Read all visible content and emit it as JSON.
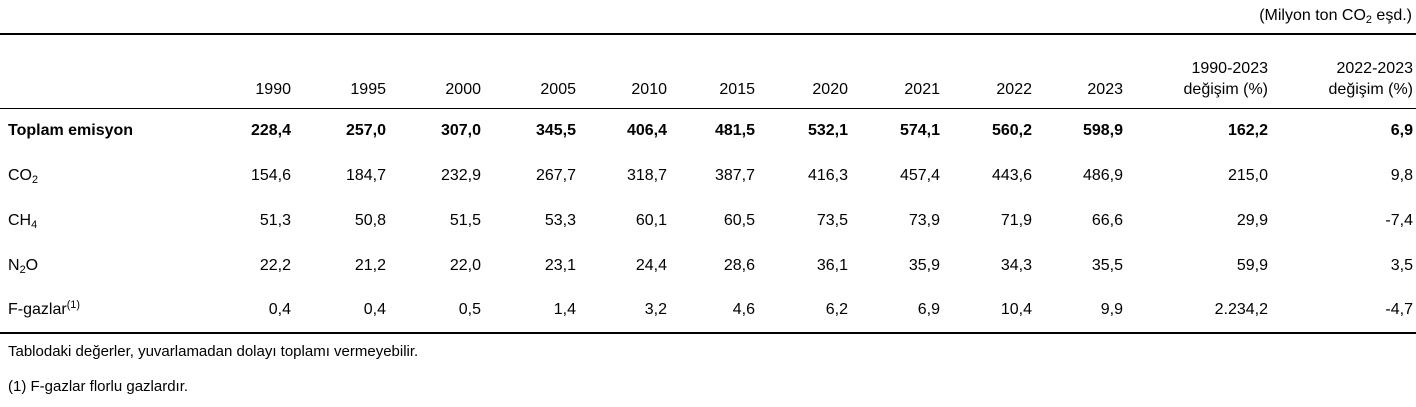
{
  "unit_label_parts": [
    {
      "text": "(Milyon ton CO"
    },
    {
      "text": "2",
      "style": "sub"
    },
    {
      "text": " eşd.)"
    }
  ],
  "table": {
    "columns": [
      {
        "lines": [
          ""
        ]
      },
      {
        "lines": [
          "1990"
        ]
      },
      {
        "lines": [
          "1995"
        ]
      },
      {
        "lines": [
          "2000"
        ]
      },
      {
        "lines": [
          "2005"
        ]
      },
      {
        "lines": [
          "2010"
        ]
      },
      {
        "lines": [
          "2015"
        ]
      },
      {
        "lines": [
          "2020"
        ]
      },
      {
        "lines": [
          "2021"
        ]
      },
      {
        "lines": [
          "2022"
        ]
      },
      {
        "lines": [
          "2023"
        ]
      },
      {
        "lines": [
          "1990-2023",
          "değişim (%)"
        ]
      },
      {
        "lines": [
          "2022-2023",
          "değişim (%)"
        ]
      }
    ],
    "rows": [
      {
        "label_parts": [
          {
            "text": "Toplam emisyon"
          }
        ],
        "bold": true,
        "values": [
          "228,4",
          "257,0",
          "307,0",
          "345,5",
          "406,4",
          "481,5",
          "532,1",
          "574,1",
          "560,2",
          "598,9",
          "162,2",
          "6,9"
        ]
      },
      {
        "label_parts": [
          {
            "text": "CO"
          },
          {
            "text": "2",
            "style": "sub"
          }
        ],
        "bold": false,
        "values": [
          "154,6",
          "184,7",
          "232,9",
          "267,7",
          "318,7",
          "387,7",
          "416,3",
          "457,4",
          "443,6",
          "486,9",
          "215,0",
          "9,8"
        ]
      },
      {
        "label_parts": [
          {
            "text": "CH"
          },
          {
            "text": "4",
            "style": "sub"
          }
        ],
        "bold": false,
        "values": [
          "51,3",
          "50,8",
          "51,5",
          "53,3",
          "60,1",
          "60,5",
          "73,5",
          "73,9",
          "71,9",
          "66,6",
          "29,9",
          "-7,4"
        ]
      },
      {
        "label_parts": [
          {
            "text": "N"
          },
          {
            "text": "2",
            "style": "sub"
          },
          {
            "text": "O"
          }
        ],
        "bold": false,
        "values": [
          "22,2",
          "21,2",
          "22,0",
          "23,1",
          "24,4",
          "28,6",
          "36,1",
          "35,9",
          "34,3",
          "35,5",
          "59,9",
          "3,5"
        ]
      },
      {
        "label_parts": [
          {
            "text": "F-gazlar"
          },
          {
            "text": "(1)",
            "style": "sup"
          }
        ],
        "bold": false,
        "values": [
          "0,4",
          "0,4",
          "0,5",
          "1,4",
          "3,2",
          "4,6",
          "6,2",
          "6,9",
          "10,4",
          "9,9",
          "2.234,2",
          "-4,7"
        ]
      }
    ]
  },
  "footnotes": [
    "Tablodaki değerler, yuvarlamadan dolayı toplamı vermeyebilir.",
    "(1) F-gazlar florlu gazlardır."
  ],
  "colors": {
    "text": "#000000",
    "background": "#ffffff",
    "rule": "#000000"
  },
  "chart_data": {
    "type": "table",
    "title": "(Milyon ton CO2 eşd.)",
    "categories": [
      "1990",
      "1995",
      "2000",
      "2005",
      "2010",
      "2015",
      "2020",
      "2021",
      "2022",
      "2023",
      "1990-2023 değişim (%)",
      "2022-2023 değişim (%)"
    ],
    "series": [
      {
        "name": "Toplam emisyon",
        "values": [
          228.4,
          257.0,
          307.0,
          345.5,
          406.4,
          481.5,
          532.1,
          574.1,
          560.2,
          598.9,
          162.2,
          6.9
        ]
      },
      {
        "name": "CO2",
        "values": [
          154.6,
          184.7,
          232.9,
          267.7,
          318.7,
          387.7,
          416.3,
          457.4,
          443.6,
          486.9,
          215.0,
          9.8
        ]
      },
      {
        "name": "CH4",
        "values": [
          51.3,
          50.8,
          51.5,
          53.3,
          60.1,
          60.5,
          73.5,
          73.9,
          71.9,
          66.6,
          29.9,
          -7.4
        ]
      },
      {
        "name": "N2O",
        "values": [
          22.2,
          21.2,
          22.0,
          23.1,
          24.4,
          28.6,
          36.1,
          35.9,
          34.3,
          35.5,
          59.9,
          3.5
        ]
      },
      {
        "name": "F-gazlar (1)",
        "values": [
          0.4,
          0.4,
          0.5,
          1.4,
          3.2,
          4.6,
          6.2,
          6.9,
          10.4,
          9.9,
          2234.2,
          -4.7
        ]
      }
    ],
    "notes": [
      "Tablodaki değerler, yuvarlamadan dolayı toplamı vermeyebilir.",
      "(1) F-gazlar florlu gazlardır."
    ]
  }
}
